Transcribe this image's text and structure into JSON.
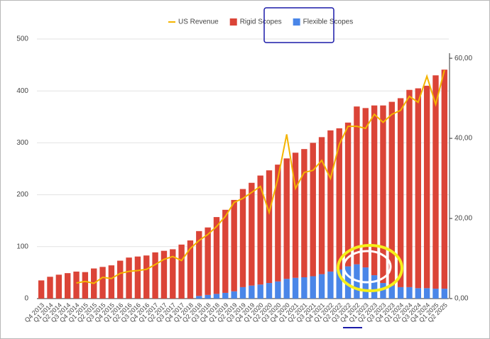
{
  "chart_data": {
    "type": "bar",
    "stacked": true,
    "categories": [
      "Q4 2013",
      "Q1 2014",
      "Q2 2014",
      "Q3 2014",
      "Q4 2014",
      "Q1 2015",
      "Q2 2015",
      "Q3 2015",
      "Q4 2015",
      "Q1 2016",
      "Q2 2016",
      "Q3 2016",
      "Q4 2016",
      "Q1 2017",
      "Q2 2017",
      "Q3 2017",
      "Q4 2017",
      "Q1 2018",
      "Q2 2018",
      "Q3 2018",
      "Q4 2018",
      "Q1 2019",
      "Q2 2019",
      "Q3 2019",
      "Q4 2019",
      "Q1 2020",
      "Q2 2020",
      "Q3 2020",
      "Q4 2020",
      "Q1 2021",
      "Q2 2021",
      "Q3 2021",
      "Q4 2021",
      "Q1 2022",
      "Q2 2022",
      "Q3 2022",
      "Q4 2022",
      "Q1 2023",
      "Q2 2023",
      "Q3 2023",
      "Q4 2023",
      "Q1 2024",
      "Q2 2024",
      "Q3 2024",
      "Q4 2024",
      "Q1 2025",
      "Q2 2025"
    ],
    "series": [
      {
        "name": "US Revenue",
        "type": "line",
        "axis": "y2",
        "color": "#f4b400",
        "values": [
          null,
          null,
          null,
          null,
          3.9,
          4.3,
          3.8,
          5.3,
          5.0,
          6.3,
          6.8,
          7.0,
          7.3,
          8.5,
          9.8,
          10.5,
          9.5,
          12.5,
          14.5,
          16,
          18,
          20.5,
          24,
          25,
          26.5,
          28,
          21.5,
          30,
          41,
          27.5,
          31.5,
          32,
          34.5,
          30,
          38.5,
          43,
          43,
          42.5,
          46,
          44,
          46,
          47,
          50.5,
          49,
          55.5,
          48.5,
          57
        ]
      },
      {
        "name": "Rigid Scopes",
        "type": "bar",
        "color": "#db4437",
        "values": [
          35,
          42,
          46,
          49,
          52,
          51,
          58,
          61,
          64,
          73,
          79,
          81,
          83,
          89,
          92,
          95,
          104,
          112,
          125,
          130,
          148,
          160,
          176,
          189,
          198,
          210,
          217,
          225,
          232,
          241,
          247,
          257,
          264,
          272,
          272,
          277,
          304,
          307,
          327,
          342,
          354,
          364,
          380,
          385,
          390,
          411,
          422
        ]
      },
      {
        "name": "Flexible Scopes",
        "type": "bar",
        "color": "#4a86e8",
        "values": [
          0,
          0,
          0,
          0,
          0,
          0,
          0,
          0,
          0,
          0,
          0,
          0,
          0,
          0,
          0,
          0,
          0,
          0,
          5,
          7,
          9,
          11,
          14,
          22,
          25,
          27,
          30,
          33,
          38,
          40,
          41,
          43,
          47,
          52,
          56,
          62,
          66,
          60,
          45,
          30,
          25,
          22,
          22,
          20,
          20,
          19,
          19
        ]
      }
    ],
    "ylim": [
      0,
      500
    ],
    "yticks": [
      0,
      100,
      200,
      300,
      400,
      500
    ],
    "y2lim": [
      0,
      64.8
    ],
    "y2ticks": [
      {
        "value": 0,
        "label": "0,00"
      },
      {
        "value": 20,
        "label": "20,00"
      },
      {
        "value": 40,
        "label": "40,00"
      },
      {
        "value": 60,
        "label": "60,00"
      }
    ],
    "grid": true,
    "legend": "top"
  }
}
